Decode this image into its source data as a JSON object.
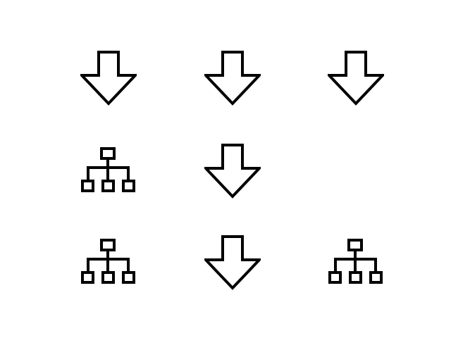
{
  "palette": {
    "background": "#ffffff",
    "stroke": "#000000"
  },
  "grid": {
    "rows": [
      [
        "arrow-down-icon",
        "arrow-down-icon",
        "arrow-down-icon"
      ],
      [
        "sitemap-icon",
        "arrow-down-icon",
        null
      ],
      [
        "sitemap-icon",
        "arrow-down-icon",
        "sitemap-icon"
      ]
    ]
  }
}
